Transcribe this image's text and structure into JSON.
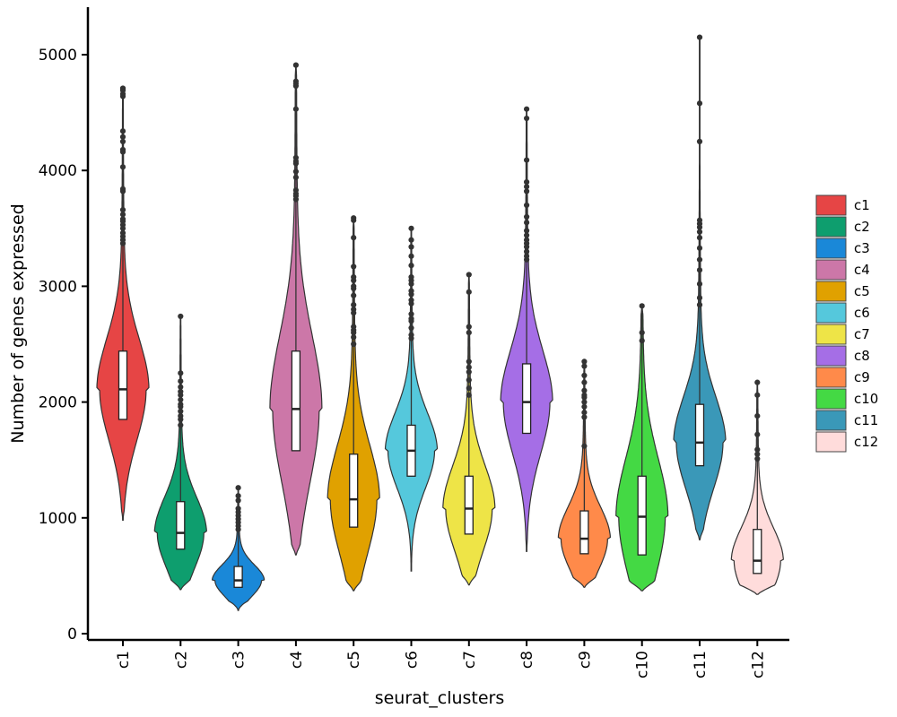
{
  "chart_data": {
    "type": "violin",
    "xlabel": "seurat_clusters",
    "ylabel": "Number of genes expressed",
    "ylim": [
      0,
      5300
    ],
    "yticks": [
      0,
      1000,
      2000,
      3000,
      4000,
      5000
    ],
    "legend_position": "right",
    "categories": [
      "c1",
      "c2",
      "c3",
      "c4",
      "c5",
      "c6",
      "c7",
      "c8",
      "c9",
      "c10",
      "c11",
      "c12"
    ],
    "colors": [
      "#e64545",
      "#0e9e6e",
      "#1a88d8",
      "#cc77a8",
      "#e0a100",
      "#55c8dc",
      "#eee447",
      "#a56ee6",
      "#ff8a4a",
      "#44d944",
      "#3a98b8",
      "#ffdcdb"
    ],
    "series": [
      {
        "name": "c1",
        "min": 980,
        "q1": 1850,
        "median": 2110,
        "q3": 2440,
        "max": 4710,
        "outliers": [
          4710,
          4700,
          4690,
          4660,
          4640,
          4340,
          4290,
          4250,
          4180,
          4160,
          4030,
          3840,
          3820,
          3660,
          3620,
          3580,
          3560,
          3530,
          3500,
          3460,
          3430,
          3400,
          3370
        ]
      },
      {
        "name": "c2",
        "min": 380,
        "q1": 730,
        "median": 870,
        "q3": 1140,
        "max": 2740,
        "outliers": [
          2740,
          2250,
          2180,
          2130,
          2090,
          2060,
          2020,
          1980,
          1960,
          1920,
          1880,
          1850,
          1800
        ]
      },
      {
        "name": "c3",
        "min": 200,
        "q1": 400,
        "median": 460,
        "q3": 580,
        "max": 1260,
        "outliers": [
          1260,
          1190,
          1150,
          1080,
          1050,
          1020,
          990,
          960,
          930,
          900
        ]
      },
      {
        "name": "c4",
        "min": 680,
        "q1": 1580,
        "median": 1940,
        "q3": 2440,
        "max": 4910,
        "outliers": [
          4910,
          4770,
          4750,
          4730,
          4530,
          4110,
          4080,
          4060,
          3990,
          3940,
          3830,
          3800,
          3780,
          3750
        ]
      },
      {
        "name": "c5",
        "min": 370,
        "q1": 920,
        "median": 1160,
        "q3": 1550,
        "max": 3590,
        "outliers": [
          3590,
          3570,
          3420,
          3170,
          3080,
          3050,
          3000,
          2980,
          2920,
          2840,
          2800,
          2770,
          2650,
          2620,
          2600,
          2560,
          2500
        ]
      },
      {
        "name": "c6",
        "min": 540,
        "q1": 1360,
        "median": 1580,
        "q3": 1800,
        "max": 3500,
        "outliers": [
          3500,
          3400,
          3340,
          3260,
          3180,
          3080,
          3050,
          3020,
          2960,
          2930,
          2880,
          2850,
          2760,
          2720,
          2700,
          2640,
          2580,
          2550
        ]
      },
      {
        "name": "c7",
        "min": 420,
        "q1": 860,
        "median": 1080,
        "q3": 1360,
        "max": 3100,
        "outliers": [
          3100,
          2950,
          2650,
          2600,
          2350,
          2300,
          2260,
          2190,
          2120,
          2060
        ]
      },
      {
        "name": "c8",
        "min": 710,
        "q1": 1730,
        "median": 2000,
        "q3": 2330,
        "max": 4530,
        "outliers": [
          4530,
          4450,
          4090,
          3900,
          3860,
          3820,
          3700,
          3600,
          3550,
          3480,
          3440,
          3400,
          3370,
          3340,
          3300,
          3260,
          3230
        ]
      },
      {
        "name": "c9",
        "min": 400,
        "q1": 690,
        "median": 820,
        "q3": 1060,
        "max": 2350,
        "outliers": [
          2350,
          2310,
          2230,
          2170,
          2100,
          2060,
          2040,
          2000,
          1960,
          1910,
          1870,
          1620
        ]
      },
      {
        "name": "c10",
        "min": 370,
        "q1": 680,
        "median": 1010,
        "q3": 1360,
        "max": 2830,
        "outliers": [
          2830,
          2600,
          2530
        ]
      },
      {
        "name": "c11",
        "min": 810,
        "q1": 1450,
        "median": 1650,
        "q3": 1980,
        "max": 5150,
        "outliers": [
          5150,
          4580,
          4250,
          3570,
          3540,
          3510,
          3470,
          3420,
          3330,
          3230,
          3140,
          3020,
          2900,
          2840
        ]
      },
      {
        "name": "c12",
        "min": 340,
        "q1": 520,
        "median": 630,
        "q3": 900,
        "max": 2170,
        "outliers": [
          2170,
          2060,
          1880,
          1720,
          1590,
          1550,
          1510
        ]
      }
    ]
  }
}
